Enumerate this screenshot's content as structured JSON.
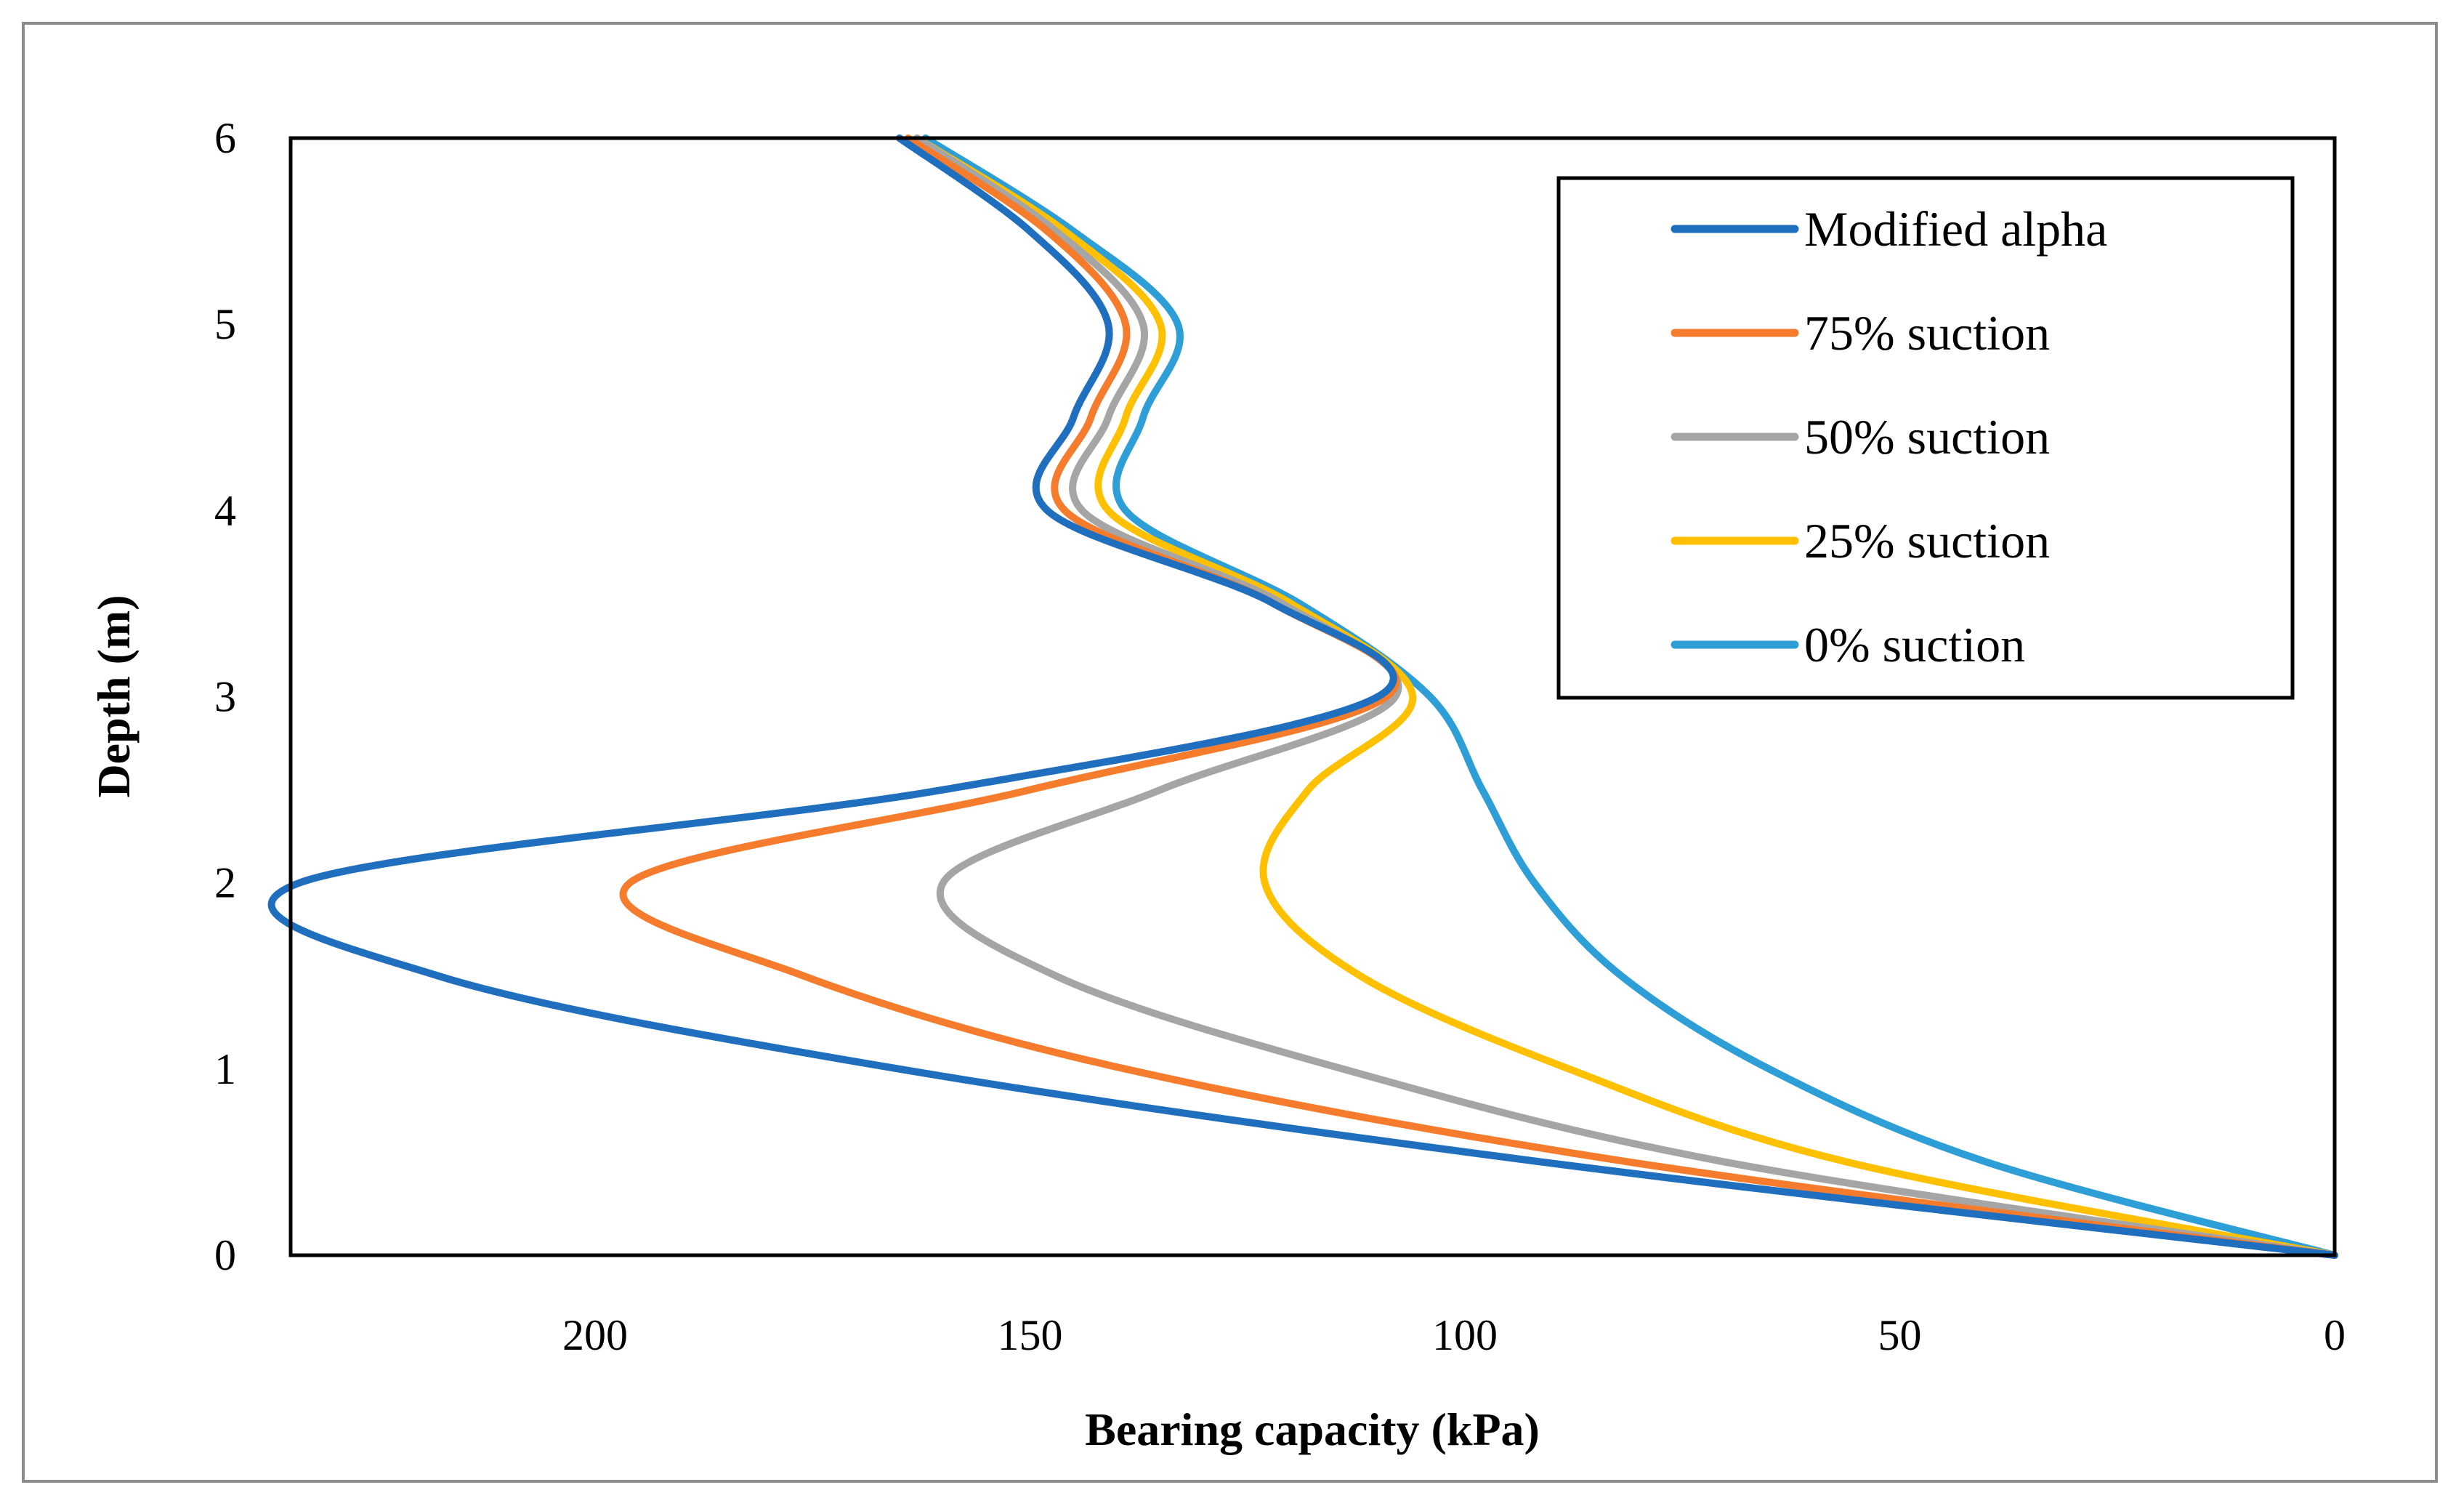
{
  "chart_data": {
    "type": "line",
    "orientation": "depth-vs-capacity (x reversed, y = depth)",
    "title": "",
    "xlabel": "Bearing capacity (kPa)",
    "ylabel": "Depth (m)",
    "xlim": [
      235,
      0
    ],
    "ylim": [
      0,
      6
    ],
    "x_ticks": [
      "200",
      "150",
      "100",
      "50",
      "0"
    ],
    "x_tick_values": [
      200,
      150,
      100,
      50,
      0
    ],
    "y_ticks": [
      "0",
      "1",
      "2",
      "3",
      "4",
      "5",
      "6"
    ],
    "y_tick_values": [
      0,
      1,
      2,
      3,
      4,
      5,
      6
    ],
    "grid": false,
    "legend_position": "top-right",
    "depth": [
      0,
      0.5,
      1.0,
      1.5,
      2.0,
      2.5,
      3.0,
      3.5,
      4.0,
      4.5,
      5.0,
      5.5,
      6.0
    ],
    "series": [
      {
        "name": "Modified alpha",
        "color": "#1f6fbe",
        "x": [
          0,
          91,
          165,
          218,
          234,
          160,
          110,
          122,
          148,
          145,
          141,
          150,
          165
        ]
      },
      {
        "name": "75% suction",
        "color": "#f47c2c",
        "x": [
          0,
          81,
          139,
          176,
          196,
          150,
          109,
          122,
          146,
          143,
          139,
          148,
          164
        ]
      },
      {
        "name": "50% suction",
        "color": "#a5a5a5",
        "x": [
          0,
          70,
          114,
          147,
          160,
          135,
          108,
          121,
          144,
          141,
          137,
          147,
          163
        ]
      },
      {
        "name": "25% suction",
        "color": "#ffc000",
        "x": [
          0,
          56,
          88,
          112,
          123,
          118,
          106,
          120,
          141,
          139,
          135,
          146,
          163
        ]
      },
      {
        "name": "0% suction",
        "color": "#2e9ed6",
        "x": [
          0,
          40,
          65,
          82,
          92,
          98,
          104,
          119,
          139,
          137,
          133,
          145,
          162
        ]
      }
    ]
  }
}
